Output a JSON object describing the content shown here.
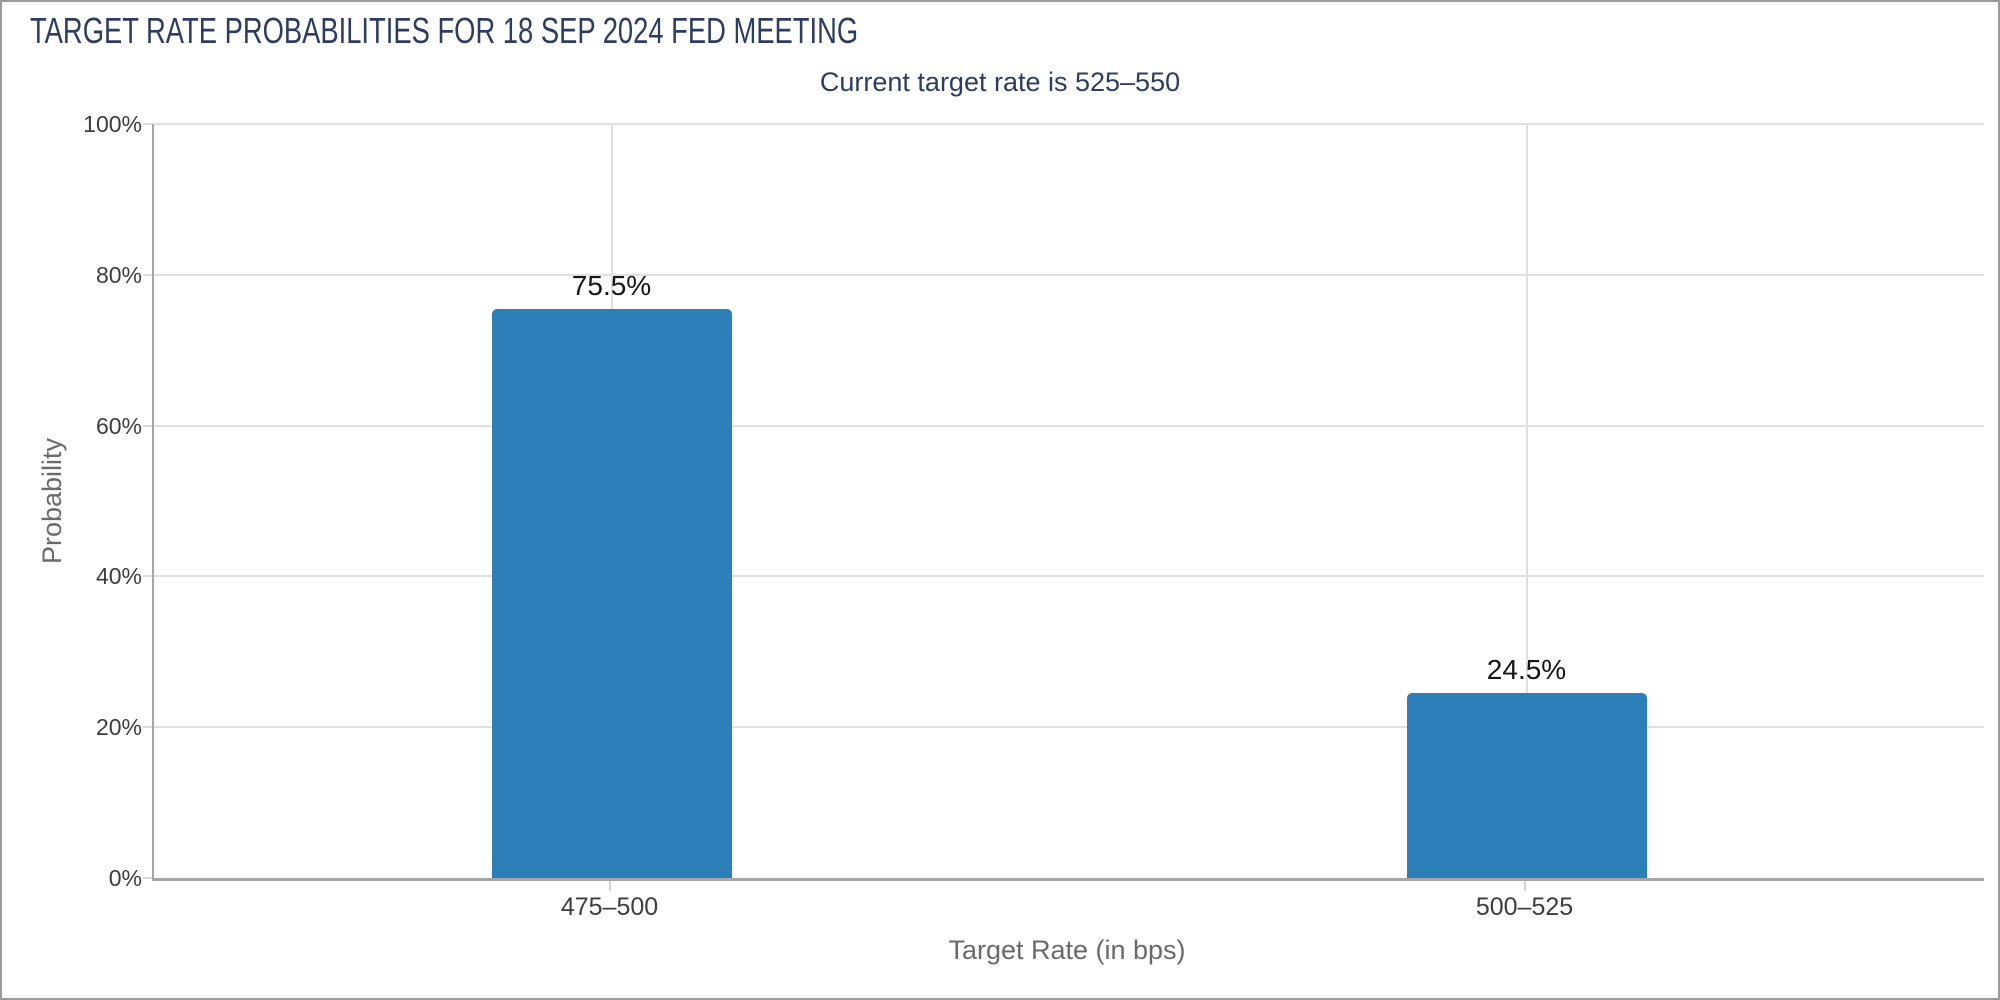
{
  "header": {
    "title": "TARGET RATE PROBABILITIES FOR 18 SEP 2024 FED MEETING",
    "subtitle": "Current target rate is 525–550"
  },
  "chart_data": {
    "type": "bar",
    "title": "TARGET RATE PROBABILITIES FOR 18 SEP 2024 FED MEETING",
    "subtitle": "Current target rate is 525–550",
    "categories": [
      "475–500",
      "500–525"
    ],
    "values": [
      75.5,
      24.5
    ],
    "value_labels": [
      "75.5%",
      "24.5%"
    ],
    "xlabel": "Target Rate (in bps)",
    "ylabel": "Probability",
    "ylim": [
      0,
      100
    ],
    "yticks": [
      0,
      20,
      40,
      60,
      80,
      100
    ],
    "ytick_suffix": "%",
    "grid": "horizontal gridlines at each y tick; one vertical gridline at each category center",
    "legend": "none",
    "bar_color": "#2c7fb8"
  },
  "colors": {
    "title_text": "#2c3c62",
    "bar": "#2c7fb8",
    "gridline": "#e0e0e0",
    "axis_line": "#a6a6a6",
    "tick_label": "#3d3d3d",
    "value_label": "#161616",
    "axis_title": "#6a6a6a",
    "window_border": "#9b9b9b",
    "background": "#ffffff"
  }
}
